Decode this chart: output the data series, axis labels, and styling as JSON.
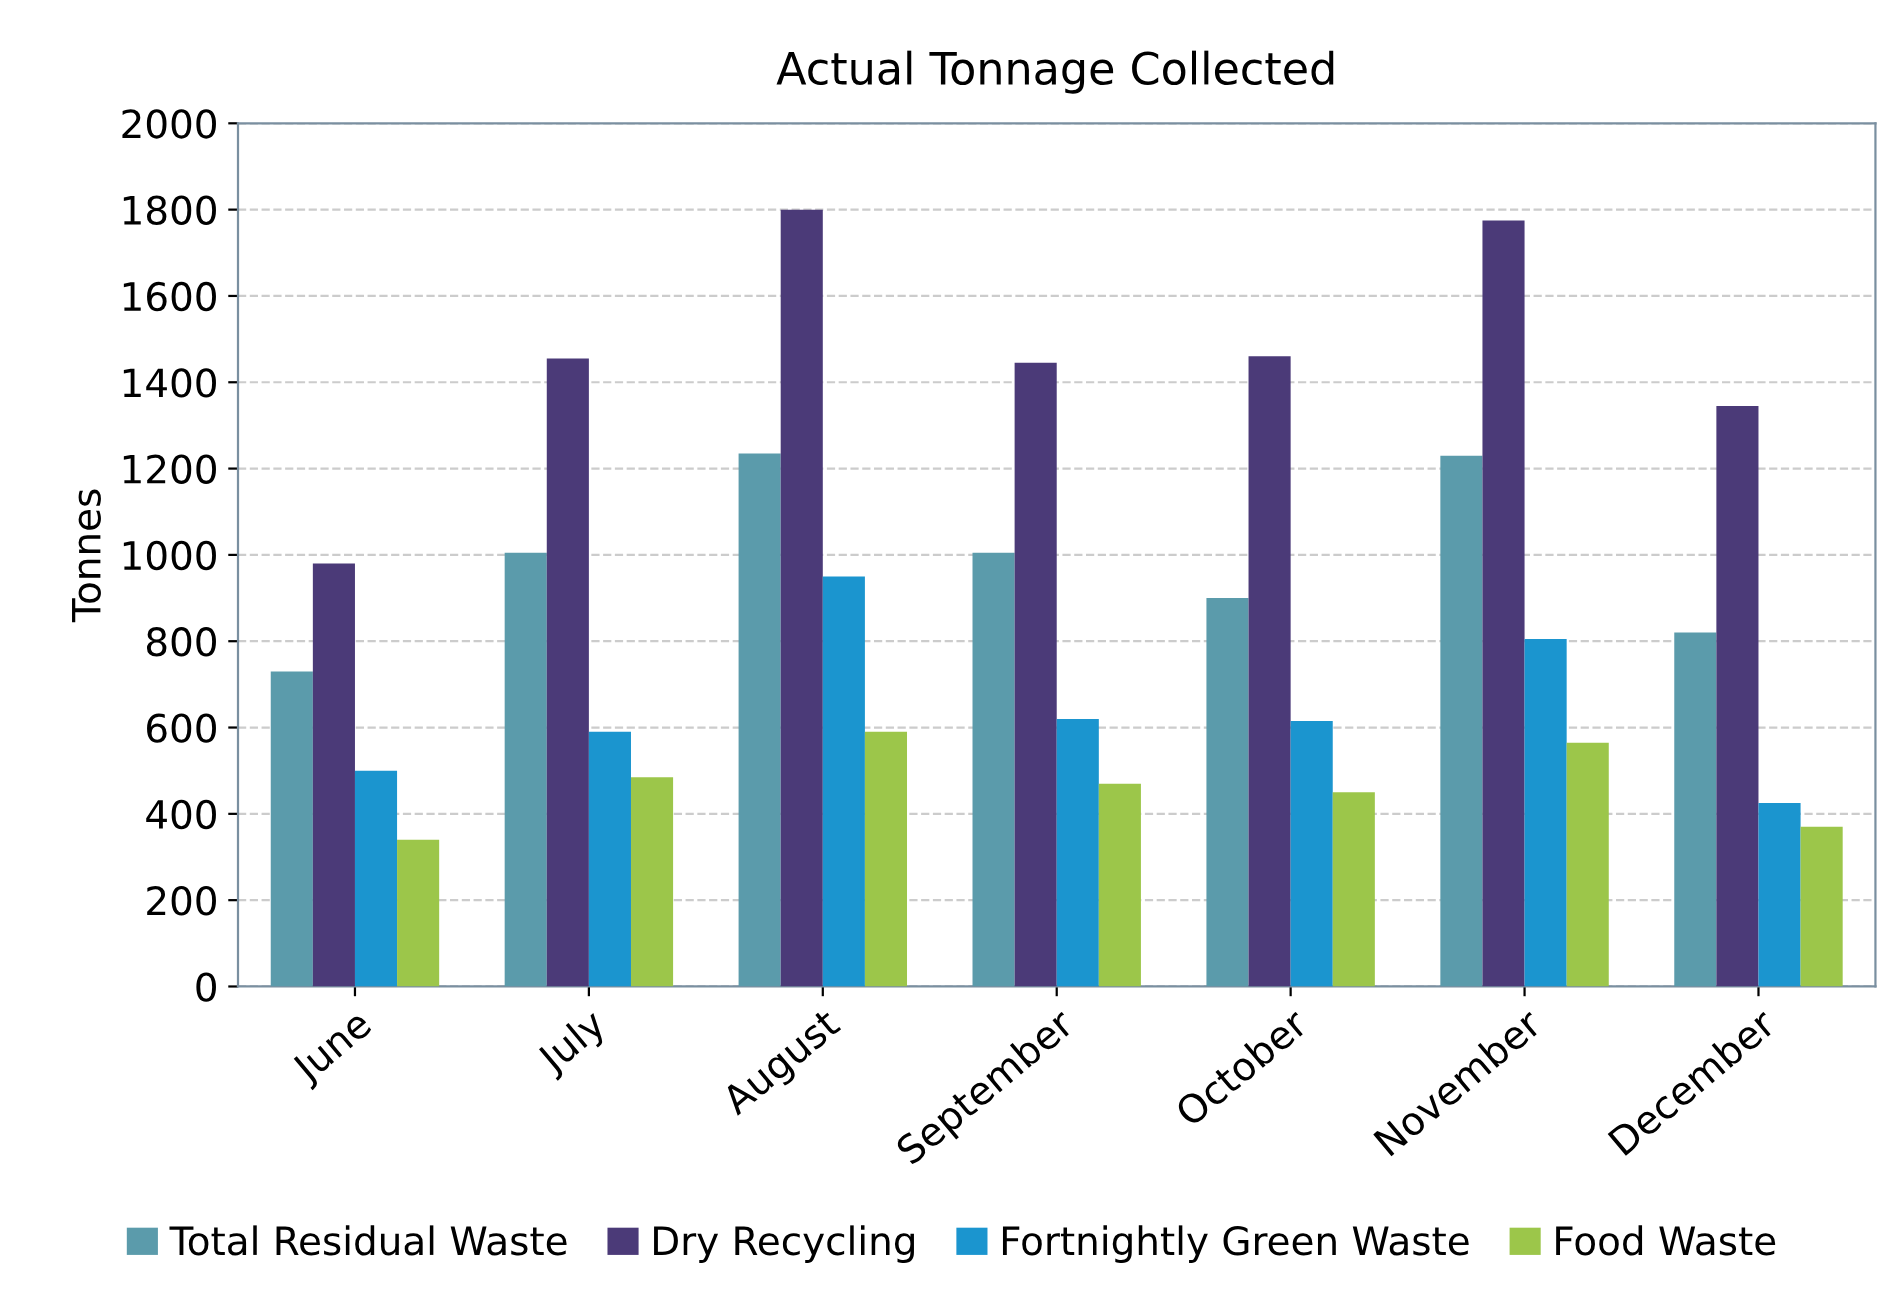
{
  "chart_data": {
    "type": "bar",
    "title": "Actual Tonnage Collected",
    "ylabel": "Tonnes",
    "categories": [
      "June",
      "July",
      "August",
      "September",
      "October",
      "November",
      "December"
    ],
    "series": [
      {
        "name": "Total Residual Waste",
        "color": "#5b9bab",
        "values": [
          730,
          1005,
          1235,
          1005,
          900,
          1230,
          820
        ]
      },
      {
        "name": "Dry Recycling",
        "color": "#4b3a78",
        "values": [
          980,
          1455,
          1800,
          1445,
          1460,
          1775,
          1345
        ]
      },
      {
        "name": "Fortnightly Green Waste",
        "color": "#1b95cf",
        "values": [
          500,
          590,
          950,
          620,
          615,
          805,
          425
        ]
      },
      {
        "name": "Food Waste",
        "color": "#9cc64a",
        "values": [
          340,
          485,
          590,
          470,
          450,
          565,
          370
        ]
      }
    ],
    "ylim": [
      0,
      2000
    ],
    "yticks": [
      0,
      200,
      400,
      600,
      800,
      1000,
      1200,
      1400,
      1600,
      1800,
      2000
    ],
    "grid": "y",
    "legend": "bottom"
  }
}
